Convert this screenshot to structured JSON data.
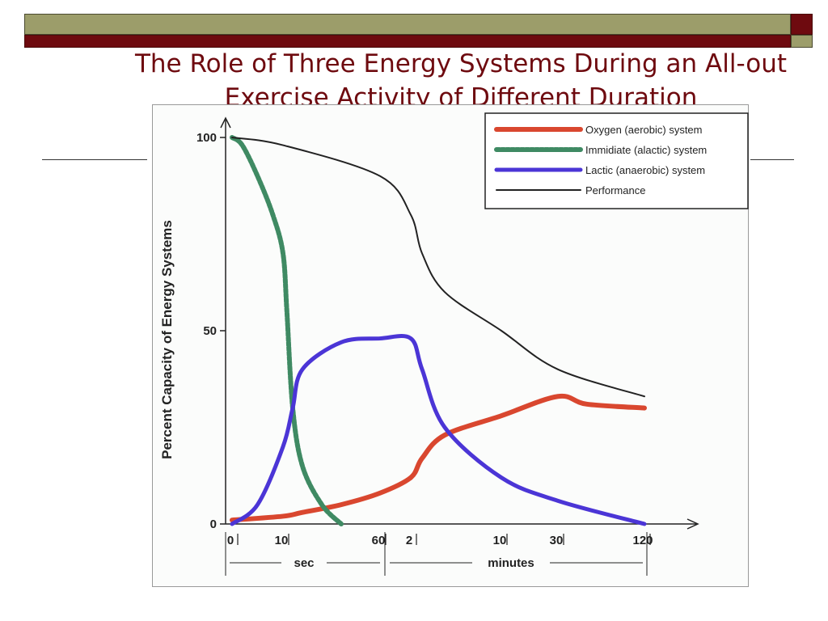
{
  "slide": {
    "title": "The Role of Three Energy Systems During an All-out Exercise Activity of Different Duration"
  },
  "colors": {
    "title": "#6e0a0f",
    "olive_bar": "#9c9d6a",
    "maroon_bar": "#6e0a0f",
    "oxygen": "#d9472f",
    "immediate": "#3f8a63",
    "lactic": "#4b35d6",
    "performance": "#222222"
  },
  "chart_data": {
    "type": "line",
    "ylabel": "Percent Capacity of Energy Systems",
    "ylim": [
      0,
      100
    ],
    "y_ticks": [
      "100",
      "50",
      "0"
    ],
    "y_tick_values": [
      100,
      50,
      0
    ],
    "x_tick_labels": [
      "0",
      "10",
      "60",
      "2",
      "10",
      "30",
      "120"
    ],
    "x_tick_units": [
      "sec",
      "sec",
      "sec",
      "minutes",
      "minutes",
      "minutes",
      "minutes"
    ],
    "x_groups": [
      "sec",
      "minutes"
    ],
    "legend_position": "top-right",
    "series": [
      {
        "name": "Oxygen (aerobic) system",
        "color": "#d9472f",
        "points": [
          [
            0,
            1
          ],
          [
            10,
            2
          ],
          [
            20,
            3
          ],
          [
            40,
            5
          ],
          [
            60,
            8
          ],
          [
            2,
            12
          ],
          [
            3,
            17
          ],
          [
            5,
            23
          ],
          [
            10,
            28
          ],
          [
            30,
            33
          ],
          [
            60,
            31
          ],
          [
            120,
            30
          ]
        ]
      },
      {
        "name": "Immidiate (alactic) system",
        "color": "#3f8a63",
        "points": [
          [
            0,
            100
          ],
          [
            2,
            98
          ],
          [
            5,
            90
          ],
          [
            8,
            80
          ],
          [
            10,
            70
          ],
          [
            12,
            55
          ],
          [
            15,
            30
          ],
          [
            20,
            15
          ],
          [
            30,
            5
          ],
          [
            40,
            0
          ]
        ]
      },
      {
        "name": "Lactic (anaerobic) system",
        "color": "#4b35d6",
        "points": [
          [
            0,
            0
          ],
          [
            5,
            5
          ],
          [
            10,
            20
          ],
          [
            15,
            30
          ],
          [
            20,
            40
          ],
          [
            40,
            47
          ],
          [
            60,
            48
          ],
          [
            2,
            48
          ],
          [
            3,
            40
          ],
          [
            5,
            25
          ],
          [
            10,
            12
          ],
          [
            30,
            6
          ],
          [
            120,
            0
          ]
        ]
      },
      {
        "name": "Performance",
        "color": "#222222",
        "points": [
          [
            0,
            100
          ],
          [
            10,
            98
          ],
          [
            60,
            90
          ],
          [
            2,
            80
          ],
          [
            3,
            70
          ],
          [
            5,
            60
          ],
          [
            10,
            50
          ],
          [
            30,
            40
          ],
          [
            120,
            33
          ]
        ]
      }
    ]
  }
}
